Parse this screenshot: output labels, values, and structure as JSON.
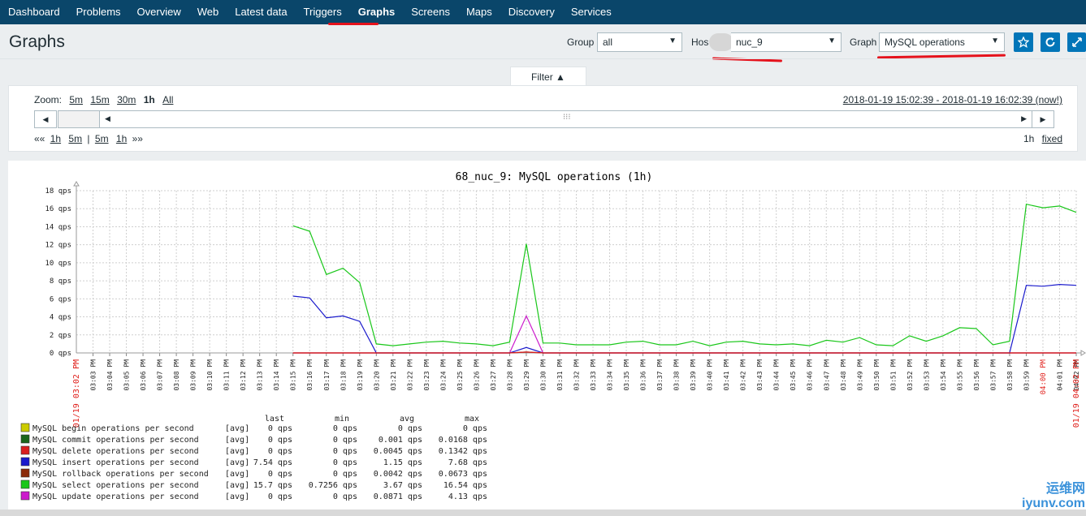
{
  "nav": {
    "items": [
      "Dashboard",
      "Problems",
      "Overview",
      "Web",
      "Latest data",
      "Triggers",
      "Graphs",
      "Screens",
      "Maps",
      "Discovery",
      "Services"
    ],
    "active": "Graphs"
  },
  "header": {
    "title": "Graphs",
    "group_label": "Group",
    "group_value": "all",
    "host_label": "Hos",
    "host_value": "nuc_9",
    "graph_label": "Graph",
    "graph_value": "MySQL operations"
  },
  "filter": {
    "tab_label": "Filter ▲",
    "zoom_label": "Zoom:",
    "zoom_options": [
      "5m",
      "15m",
      "30m",
      "1h",
      "All"
    ],
    "zoom_current": "1h",
    "time_range": "2018-01-19 15:02:39 - 2018-01-19 16:02:39 (now!)",
    "nav_back": "««",
    "nav_back_links": [
      "1h",
      "5m"
    ],
    "nav_sep": "|",
    "nav_fwd_links": [
      "5m",
      "1h"
    ],
    "nav_fwd": "»»",
    "period": "1h",
    "fixed": "fixed"
  },
  "colors": {
    "nav_bg": "#0a466a",
    "accent": "#0275b8",
    "highlight": "#e5121c"
  },
  "chart_data": {
    "type": "line",
    "title": "68_nuc_9: MySQL operations (1h)",
    "unit": "qps",
    "ylim": [
      0,
      18
    ],
    "y_ticks": [
      "0 qps",
      "2 qps",
      "4 qps",
      "6 qps",
      "8 qps",
      "10 qps",
      "12 qps",
      "14 qps",
      "16 qps",
      "18 qps"
    ],
    "x_start_label": "01/19 03:02 PM",
    "x_end_label": "01/19 04:02 PM",
    "x_labels": [
      "03:03 PM",
      "03:04 PM",
      "03:05 PM",
      "03:06 PM",
      "03:07 PM",
      "03:08 PM",
      "03:09 PM",
      "03:10 PM",
      "03:11 PM",
      "03:12 PM",
      "03:13 PM",
      "03:14 PM",
      "03:15 PM",
      "03:16 PM",
      "03:17 PM",
      "03:18 PM",
      "03:19 PM",
      "03:20 PM",
      "03:21 PM",
      "03:22 PM",
      "03:23 PM",
      "03:24 PM",
      "03:25 PM",
      "03:26 PM",
      "03:27 PM",
      "03:28 PM",
      "03:29 PM",
      "03:30 PM",
      "03:31 PM",
      "03:32 PM",
      "03:33 PM",
      "03:34 PM",
      "03:35 PM",
      "03:36 PM",
      "03:37 PM",
      "03:38 PM",
      "03:39 PM",
      "03:40 PM",
      "03:41 PM",
      "03:42 PM",
      "03:43 PM",
      "03:44 PM",
      "03:45 PM",
      "03:46 PM",
      "03:47 PM",
      "03:48 PM",
      "03:49 PM",
      "03:50 PM",
      "03:51 PM",
      "03:52 PM",
      "03:53 PM",
      "03:54 PM",
      "03:55 PM",
      "03:56 PM",
      "03:57 PM",
      "03:58 PM",
      "03:59 PM",
      "04:00 PM",
      "04:01 PM",
      "04:02 PM"
    ],
    "x_highlight_labels": [
      "04:00 PM"
    ],
    "series": [
      {
        "name": "MySQL select operations per second",
        "color": "#1ac71a",
        "x": [
          "03:15 PM",
          "03:16 PM",
          "03:17 PM",
          "03:18 PM",
          "03:19 PM",
          "03:20 PM",
          "03:21 PM",
          "03:22 PM",
          "03:23 PM",
          "03:24 PM",
          "03:25 PM",
          "03:26 PM",
          "03:27 PM",
          "03:28 PM",
          "03:29 PM",
          "03:30 PM",
          "03:31 PM",
          "03:32 PM",
          "03:33 PM",
          "03:34 PM",
          "03:35 PM",
          "03:36 PM",
          "03:37 PM",
          "03:38 PM",
          "03:39 PM",
          "03:40 PM",
          "03:41 PM",
          "03:42 PM",
          "03:43 PM",
          "03:44 PM",
          "03:45 PM",
          "03:46 PM",
          "03:47 PM",
          "03:48 PM",
          "03:49 PM",
          "03:50 PM",
          "03:51 PM",
          "03:52 PM",
          "03:53 PM",
          "03:54 PM",
          "03:55 PM",
          "03:56 PM",
          "03:57 PM",
          "03:58 PM",
          "03:59 PM",
          "04:00 PM",
          "04:01 PM",
          "04:02 PM"
        ],
        "values": [
          14.1,
          13.5,
          8.7,
          9.4,
          7.8,
          1.0,
          0.8,
          1.0,
          1.2,
          1.3,
          1.1,
          1.0,
          0.8,
          1.2,
          12.1,
          1.1,
          1.1,
          0.9,
          0.9,
          0.9,
          1.2,
          1.3,
          0.9,
          0.9,
          1.3,
          0.8,
          1.2,
          1.3,
          1.0,
          0.9,
          1.0,
          0.8,
          1.4,
          1.2,
          1.7,
          0.9,
          0.8,
          1.9,
          1.3,
          1.9,
          2.8,
          2.7,
          0.9,
          1.3,
          16.5,
          16.1,
          16.3,
          15.6
        ]
      },
      {
        "name": "MySQL insert operations per second",
        "color": "#1a1acc",
        "x": [
          "03:15 PM",
          "03:16 PM",
          "03:17 PM",
          "03:18 PM",
          "03:19 PM",
          "03:20 PM",
          "03:28 PM",
          "03:29 PM",
          "03:30 PM",
          "03:58 PM",
          "03:59 PM",
          "04:00 PM",
          "04:01 PM",
          "04:02 PM"
        ],
        "values": [
          6.3,
          6.1,
          3.9,
          4.1,
          3.5,
          0.0,
          0.0,
          0.6,
          0.0,
          0.0,
          7.5,
          7.4,
          7.6,
          7.5
        ]
      },
      {
        "name": "MySQL update operations per second",
        "color": "#cc1acc",
        "x": [
          "03:15 PM",
          "03:28 PM",
          "03:29 PM",
          "03:30 PM",
          "04:02 PM"
        ],
        "values": [
          0.0,
          0.0,
          4.1,
          0.0,
          0.0
        ]
      },
      {
        "name": "MySQL rollback operations per second",
        "color": "#8b2a0a",
        "x": [
          "03:15 PM",
          "03:28 PM",
          "03:29 PM",
          "03:30 PM",
          "04:02 PM"
        ],
        "values": [
          0.0,
          0.0,
          0.1,
          0.0,
          0.0
        ]
      },
      {
        "name": "MySQL delete operations per second",
        "color": "#d91e1e",
        "x": [
          "03:15 PM",
          "03:28 PM",
          "03:29 PM",
          "03:30 PM",
          "04:02 PM"
        ],
        "values": [
          0.0,
          0.0,
          0.1,
          0.0,
          0.0
        ]
      }
    ],
    "legend_headers": [
      "last",
      "min",
      "avg",
      "max"
    ],
    "legend": [
      {
        "name": "MySQL begin operations per second",
        "color": "#cccc00",
        "func": "[avg]",
        "last": "0 qps",
        "min": "0 qps",
        "avg": "0 qps",
        "max": "0 qps"
      },
      {
        "name": "MySQL commit operations per second",
        "color": "#1a661a",
        "func": "[avg]",
        "last": "0 qps",
        "min": "0 qps",
        "avg": "0.001 qps",
        "max": "0.0168 qps"
      },
      {
        "name": "MySQL delete operations per second",
        "color": "#d91e1e",
        "func": "[avg]",
        "last": "0 qps",
        "min": "0 qps",
        "avg": "0.0045 qps",
        "max": "0.1342 qps"
      },
      {
        "name": "MySQL insert operations per second",
        "color": "#1a1acc",
        "func": "[avg]",
        "last": "7.54 qps",
        "min": "0 qps",
        "avg": "1.15 qps",
        "max": "7.68 qps"
      },
      {
        "name": "MySQL rollback operations per second",
        "color": "#8b2a0a",
        "func": "[avg]",
        "last": "0 qps",
        "min": "0 qps",
        "avg": "0.0042 qps",
        "max": "0.0673 qps"
      },
      {
        "name": "MySQL select operations per second",
        "color": "#1ac71a",
        "func": "[avg]",
        "last": "15.7 qps",
        "min": "0.7256 qps",
        "avg": "3.67 qps",
        "max": "16.54 qps"
      },
      {
        "name": "MySQL update operations per second",
        "color": "#cc1acc",
        "func": "[avg]",
        "last": "0 qps",
        "min": "0 qps",
        "avg": "0.0871 qps",
        "max": "4.13 qps"
      }
    ]
  },
  "watermark": "运维网 iyunv.com"
}
